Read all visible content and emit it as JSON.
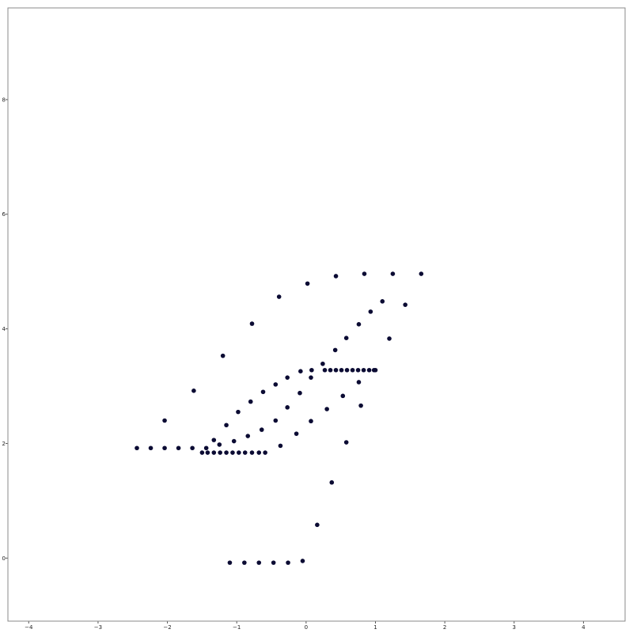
{
  "chart_data": {
    "type": "scatter",
    "title": "",
    "xlabel": "",
    "ylabel": "",
    "xlim": [
      -4.3,
      4.6
    ],
    "ylim": [
      -1.1,
      9.6
    ],
    "grid": false,
    "x_ticks": [
      -4,
      -3,
      -2,
      -1,
      0,
      1,
      2,
      3,
      4
    ],
    "y_ticks": [
      0,
      2,
      4,
      6,
      8
    ],
    "x_tick_labels": [
      "−4",
      "−3",
      "−2",
      "−1",
      "0",
      "1",
      "2",
      "3",
      "4"
    ],
    "y_tick_labels": [
      "0",
      "2",
      "4",
      "6",
      "8"
    ],
    "point_color": "#0b0b33",
    "series": [
      {
        "points": [
          [
            -1.1,
            -0.08
          ],
          [
            -0.89,
            -0.08
          ],
          [
            -0.68,
            -0.08
          ],
          [
            -0.47,
            -0.08
          ],
          [
            -0.26,
            -0.08
          ],
          [
            -0.05,
            -0.05
          ],
          [
            0.16,
            0.58
          ],
          [
            0.37,
            1.32
          ],
          [
            0.58,
            2.02
          ],
          [
            0.79,
            2.66
          ],
          [
            1.2,
            3.83
          ],
          [
            1.43,
            4.42
          ],
          [
            -2.44,
            1.92
          ],
          [
            -2.24,
            1.92
          ],
          [
            -2.04,
            1.92
          ],
          [
            -1.84,
            1.92
          ],
          [
            -1.64,
            1.92
          ],
          [
            -1.44,
            1.92
          ],
          [
            -1.5,
            1.84
          ],
          [
            -1.42,
            1.84
          ],
          [
            -1.33,
            1.84
          ],
          [
            -1.24,
            1.84
          ],
          [
            -1.15,
            1.84
          ],
          [
            -1.06,
            1.84
          ],
          [
            -0.97,
            1.84
          ],
          [
            -0.88,
            1.84
          ],
          [
            -0.78,
            1.84
          ],
          [
            -0.68,
            1.84
          ],
          [
            -0.59,
            1.84
          ],
          [
            -1.33,
            2.06
          ],
          [
            -1.25,
            1.98
          ],
          [
            -1.15,
            2.32
          ],
          [
            -1.04,
            2.04
          ],
          [
            -0.98,
            2.55
          ],
          [
            -0.84,
            2.13
          ],
          [
            -0.8,
            2.73
          ],
          [
            -0.64,
            2.24
          ],
          [
            -0.62,
            2.9
          ],
          [
            -0.44,
            2.4
          ],
          [
            -0.44,
            3.03
          ],
          [
            -0.37,
            1.96
          ],
          [
            -0.27,
            2.63
          ],
          [
            -0.27,
            3.15
          ],
          [
            -0.14,
            2.17
          ],
          [
            -0.09,
            2.88
          ],
          [
            -0.08,
            3.26
          ],
          [
            0.07,
            2.39
          ],
          [
            0.07,
            3.15
          ],
          [
            0.08,
            3.28
          ],
          [
            0.24,
            3.39
          ],
          [
            0.3,
            2.6
          ],
          [
            0.42,
            3.63
          ],
          [
            0.53,
            2.83
          ],
          [
            0.58,
            3.84
          ],
          [
            0.76,
            3.07
          ],
          [
            0.76,
            4.08
          ],
          [
            0.93,
            4.3
          ],
          [
            1.1,
            4.48
          ],
          [
            0.27,
            3.28
          ],
          [
            0.35,
            3.28
          ],
          [
            0.43,
            3.28
          ],
          [
            0.51,
            3.28
          ],
          [
            0.59,
            3.28
          ],
          [
            0.67,
            3.28
          ],
          [
            0.75,
            3.28
          ],
          [
            0.83,
            3.28
          ],
          [
            0.91,
            3.28
          ],
          [
            0.98,
            3.28
          ],
          [
            1.0,
            3.28
          ],
          [
            -2.04,
            2.4
          ],
          [
            -1.62,
            2.92
          ],
          [
            -1.2,
            3.53
          ],
          [
            -0.78,
            4.09
          ],
          [
            -0.39,
            4.56
          ],
          [
            0.02,
            4.79
          ],
          [
            0.43,
            4.92
          ],
          [
            0.84,
            4.96
          ],
          [
            1.25,
            4.96
          ],
          [
            1.66,
            4.96
          ]
        ]
      }
    ]
  }
}
